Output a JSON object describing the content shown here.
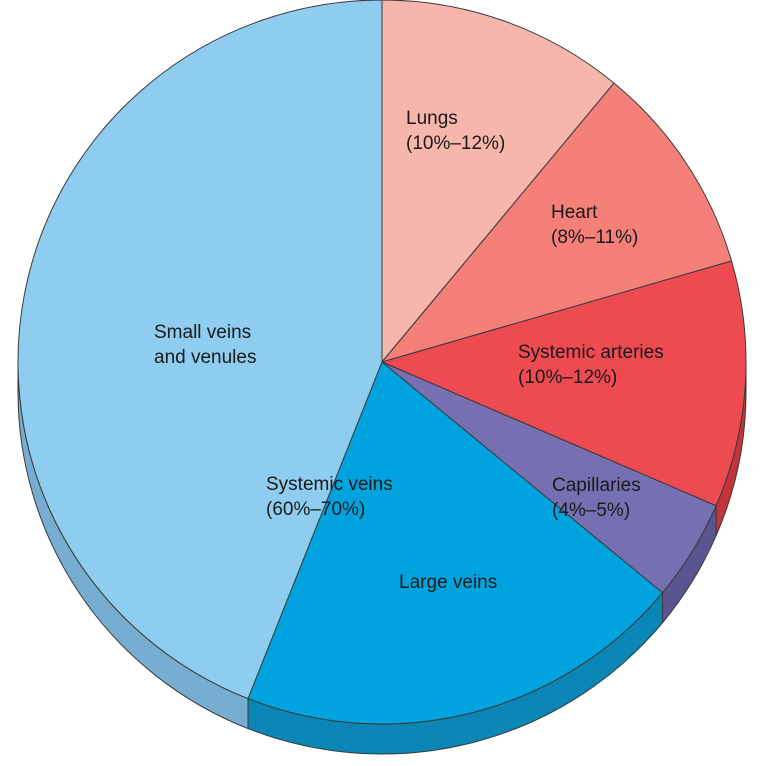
{
  "chart_data": {
    "type": "pie",
    "title": "",
    "slices": [
      {
        "name": "Lungs",
        "range": "(10%–12%)",
        "value": 11,
        "color": "#f7b6ab",
        "side": "#d99a90"
      },
      {
        "name": "Heart",
        "range": "(8%–11%)",
        "value": 9.5,
        "color": "#f48079",
        "side": "#d06560"
      },
      {
        "name": "Systemic arteries",
        "range": "(10%–12%)",
        "value": 11,
        "color": "#ee4a52",
        "side": "#c5343b"
      },
      {
        "name": "Capillaries",
        "range": "(4%–5%)",
        "value": 4.5,
        "color": "#7670b2",
        "side": "#5a5590"
      },
      {
        "name": "Large veins",
        "range": "",
        "value": 20,
        "color": "#00a3de",
        "side": "#0a86b6"
      },
      {
        "name": "Small veins and venules",
        "range": "",
        "value": 44,
        "color": "#8ecdf0",
        "side": "#76add0"
      }
    ],
    "group_label": {
      "name": "Systemic veins",
      "range": "(60%–70%)"
    }
  }
}
